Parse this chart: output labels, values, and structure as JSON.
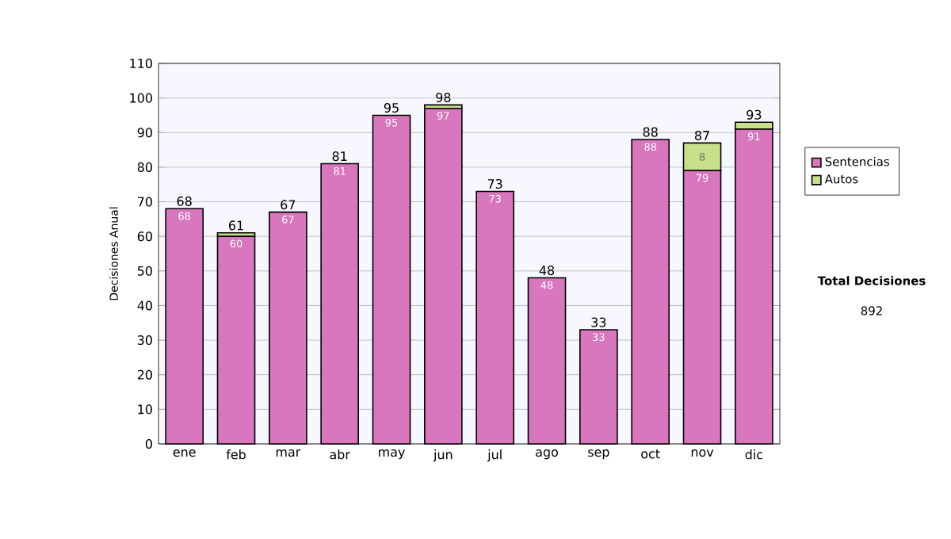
{
  "chart_data": {
    "type": "bar",
    "stacked": true,
    "ylabel": "Decisiones Anual",
    "categories": [
      "ene",
      "feb",
      "mar",
      "abr",
      "may",
      "jun",
      "jul",
      "ago",
      "sep",
      "oct",
      "nov",
      "dic"
    ],
    "series": [
      {
        "name": "Sentencias",
        "color": "#d877bd",
        "values": [
          68,
          60,
          67,
          81,
          95,
          97,
          73,
          48,
          33,
          88,
          79,
          91
        ],
        "value_labels": [
          "68",
          "60",
          "67",
          "81",
          "95",
          "97",
          "73",
          "48",
          "33",
          "88",
          "79",
          "91"
        ]
      },
      {
        "name": "Autos",
        "color": "#c8e08a",
        "values": [
          0,
          1,
          0,
          0,
          0,
          1,
          0,
          0,
          0,
          0,
          8,
          2
        ],
        "value_labels": [
          null,
          null,
          null,
          null,
          null,
          null,
          null,
          null,
          null,
          null,
          "8",
          null
        ]
      }
    ],
    "totals": [
      "68",
      "61",
      "67",
      "81",
      "95",
      "98",
      "73",
      "48",
      "33",
      "88",
      "87",
      "93"
    ],
    "ylim": [
      0,
      110
    ],
    "yticks": [
      0,
      10,
      20,
      30,
      40,
      50,
      60,
      70,
      80,
      90,
      100,
      110
    ],
    "grid": "y",
    "legend": "right",
    "annotations": [
      "Total Decisiones",
      "892"
    ]
  }
}
